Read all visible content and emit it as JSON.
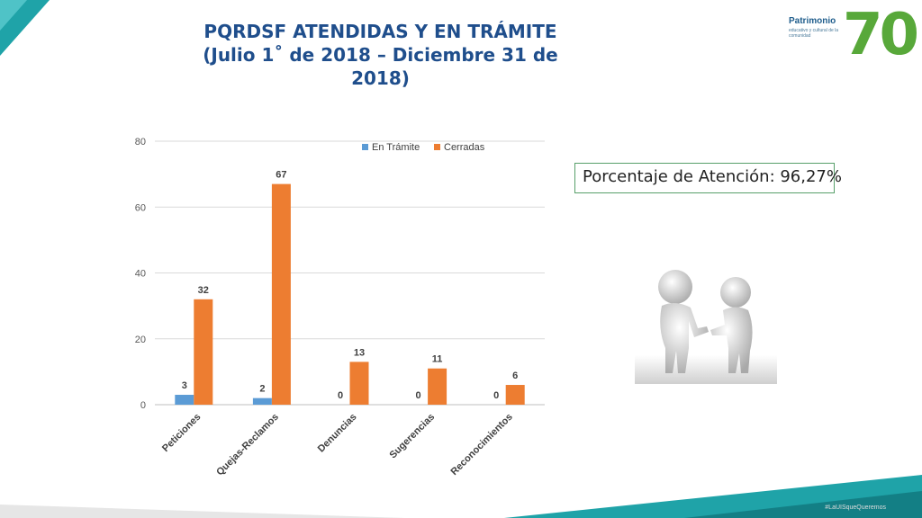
{
  "title": {
    "line1": "PQRDSF ATENDIDAS Y EN TRÁMITE",
    "line2": "(Julio 1˚ de 2018 – Diciembre 31 de",
    "line3": "2018)"
  },
  "percentage_box": {
    "text": "Porcentaje de Atención: 96,27%"
  },
  "logo": {
    "text": "Patrimonio",
    "sub": "educativo y cultural de la comunidad",
    "number": "70"
  },
  "footer": {
    "hashtag": "#LaUISqueQueremos"
  },
  "colors": {
    "series1": "#5b9bd5",
    "series2": "#ed7d31",
    "title": "#1f4e8c",
    "accent": "#58a83a",
    "teal": "#1fa3a8"
  },
  "chart_data": {
    "type": "bar",
    "categories": [
      "Peticiones",
      "Quejas-Reclamos",
      "Denuncias",
      "Sugerencias",
      "Reconocimientos"
    ],
    "series": [
      {
        "name": "En Trámite",
        "values": [
          3,
          2,
          0,
          0,
          0
        ]
      },
      {
        "name": "Cerradas",
        "values": [
          32,
          67,
          13,
          11,
          6
        ]
      }
    ],
    "ylim": [
      0,
      80
    ],
    "yticks": [
      0,
      20,
      40,
      60,
      80
    ],
    "grid": true,
    "legend": "top-right"
  }
}
